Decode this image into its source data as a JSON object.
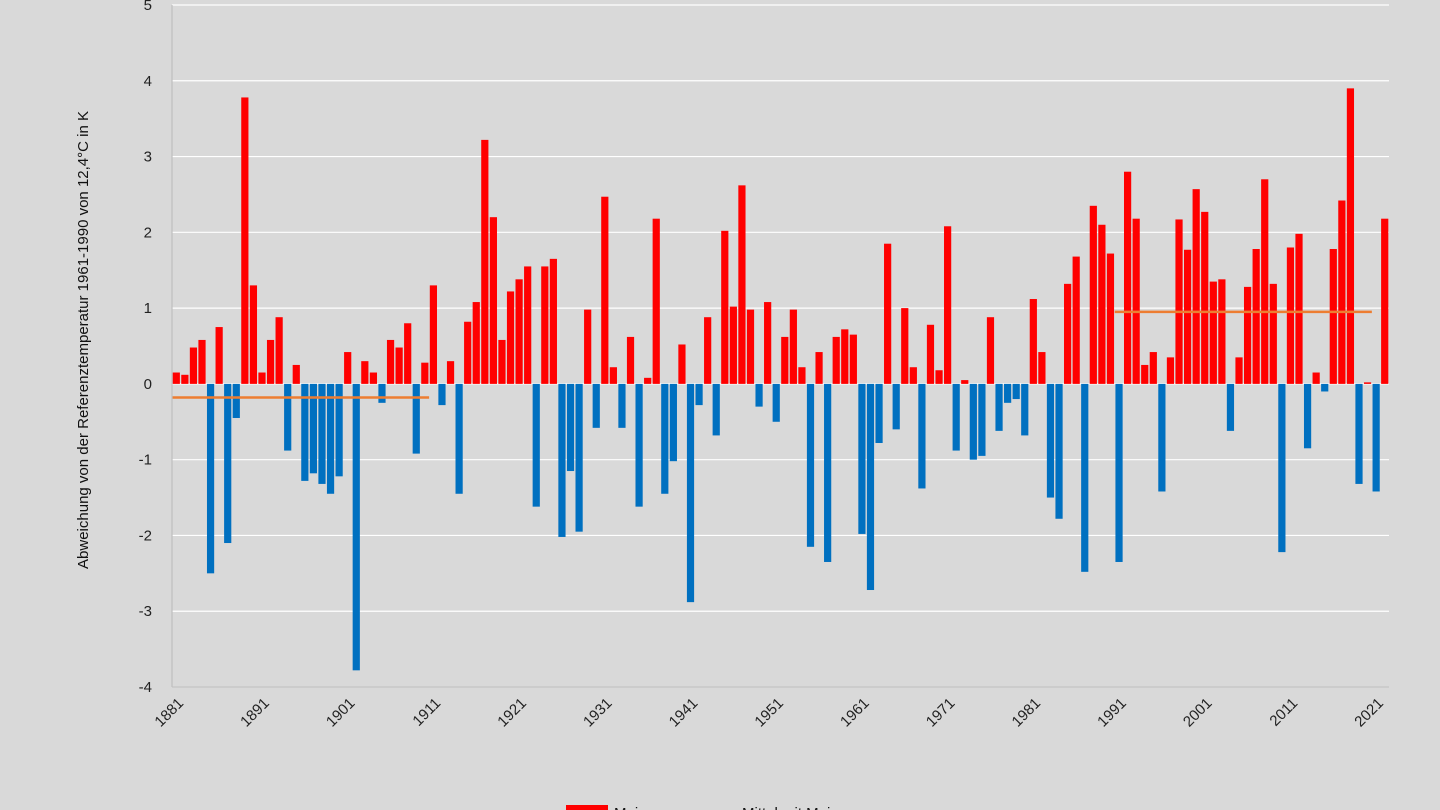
{
  "chart_data": {
    "type": "bar",
    "ylabel": "Abweichung von der Referenztemperatur 1961-1990 von 12,4°C in K",
    "ylim": [
      -4,
      5
    ],
    "yticks": [
      "-4",
      "-3",
      "-2",
      "-1",
      "0",
      "1",
      "2",
      "3",
      "4",
      "5"
    ],
    "xticks": [
      "1881",
      "1891",
      "1901",
      "1911",
      "1921",
      "1931",
      "1941",
      "1951",
      "1961",
      "1971",
      "1981",
      "1991",
      "2001",
      "2011",
      "2021"
    ],
    "grid": "horizontal",
    "legend_position": "bottom",
    "colors": {
      "positive": "#ff0000",
      "negative": "#0070c0",
      "mean": "#ed7d31",
      "grid": "#ffffff",
      "axis": "#bfbfbf"
    },
    "years": {
      "start": 1881,
      "end": 2022
    },
    "values": [
      0.15,
      0.12,
      0.48,
      0.58,
      -2.5,
      0.75,
      -2.1,
      -0.45,
      3.78,
      1.3,
      0.15,
      0.58,
      0.88,
      -0.88,
      0.25,
      -1.28,
      -1.18,
      -1.32,
      -1.45,
      -1.22,
      0.42,
      -3.78,
      0.3,
      0.15,
      -0.25,
      0.58,
      0.48,
      0.8,
      -0.92,
      0.28,
      1.3,
      -0.28,
      0.3,
      -1.45,
      0.82,
      1.08,
      3.22,
      2.2,
      0.58,
      1.22,
      1.38,
      1.55,
      -1.62,
      1.55,
      1.65,
      -2.02,
      -1.15,
      -1.95,
      0.98,
      -0.58,
      2.47,
      0.22,
      -0.58,
      0.62,
      -1.62,
      0.08,
      2.18,
      -1.45,
      -1.02,
      0.52,
      -2.88,
      -0.28,
      0.88,
      -0.68,
      2.02,
      1.02,
      2.62,
      0.98,
      -0.3,
      1.08,
      -0.5,
      0.62,
      0.98,
      0.22,
      -2.15,
      0.42,
      -2.35,
      0.62,
      0.72,
      0.65,
      -1.98,
      -2.72,
      -0.78,
      1.85,
      -0.6,
      1.0,
      0.22,
      -1.38,
      0.78,
      0.18,
      2.08,
      -0.88,
      0.05,
      -1.0,
      -0.95,
      0.88,
      -0.62,
      -0.25,
      -0.2,
      -0.68,
      1.12,
      0.42,
      -1.5,
      -1.78,
      1.32,
      1.68,
      -2.48,
      2.35,
      2.1,
      1.72,
      -2.35,
      2.8,
      2.18,
      0.25,
      0.42,
      -1.42,
      0.35,
      2.17,
      1.77,
      2.57,
      2.27,
      1.35,
      1.38,
      -0.62,
      0.35,
      1.28,
      1.78,
      2.7,
      1.32,
      -2.22,
      1.8,
      1.98,
      -0.85,
      0.15,
      -0.1,
      1.78,
      2.42,
      3.9,
      -1.32,
      0.02,
      -1.42,
      2.18
    ],
    "series": [
      {
        "name": "Mai",
        "color": "#ff0000"
      },
      {
        "name": "Mittel mit Mai",
        "color": "#ed7d31",
        "segments": [
          {
            "x": [
              1881,
              1910
            ],
            "y": -0.18
          },
          {
            "x": [
              1991,
              2020
            ],
            "y": 0.95
          }
        ]
      }
    ]
  }
}
